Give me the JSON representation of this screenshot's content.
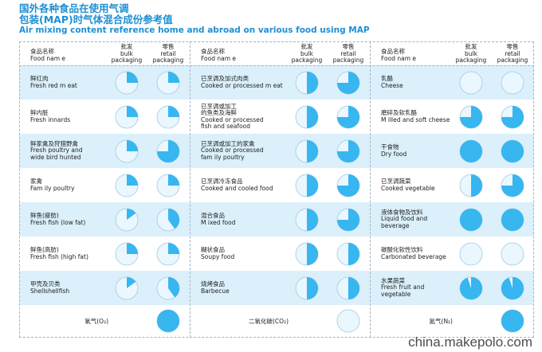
{
  "title": {
    "line1": "国外各种食品在使用气调",
    "line2": "包装(MAP)时气体混合成份参考值",
    "line3": "Air mixing content reference home and abroad on various food using MAP"
  },
  "header": {
    "food_name_cn": "食品名称",
    "food_name_en": "Food nam e",
    "bulk_cn": "批发",
    "bulk_en": "bulk\npackaging",
    "retail_cn": "零售",
    "retail_en": "retail\npackaging"
  },
  "colors": {
    "accent": "#1f8fd2",
    "pie_fill": "#37b6f0",
    "pie_bg": "#eaf7fe",
    "band": "#dbf0fb"
  },
  "columns": [
    {
      "rows": [
        {
          "name_cn": "鲜红肉",
          "name_en": "Fresh red m eat",
          "bulk": 0.25,
          "retail": 0.25
        },
        {
          "name_cn": "鲜内脏",
          "name_en": "Fresh innards",
          "bulk": 0.25,
          "retail": 0.25
        },
        {
          "name_cn": "鲜家禽及狩猎野禽",
          "name_en": "Fresh poultry and\nwide bird hunted",
          "bulk": 0.25,
          "retail": 0.75
        },
        {
          "name_cn": "家禽",
          "name_en": "Fam ily poultry",
          "bulk": 0.25,
          "retail": 0.25
        },
        {
          "name_cn": "鲜鱼(瘦肪)",
          "name_en": "Fresh fish (low fat)",
          "bulk": 0.15,
          "retail": 0.4
        },
        {
          "name_cn": "鲜鱼(高肪)",
          "name_en": "Fresh fish (high fat)",
          "bulk": 0.25,
          "retail": 0.25
        },
        {
          "name_cn": "甲壳及贝类",
          "name_en": "Shellshellfish",
          "bulk": 0.15,
          "retail": 0.4
        }
      ],
      "gas_label": "氧气(O₂)",
      "gas_fill": 1
    },
    {
      "rows": [
        {
          "name_cn": "已烹调及加式肉类",
          "name_en": "Cooked or processed m eat",
          "bulk": 0.5,
          "retail": 0.75
        },
        {
          "name_cn": "已烹调或加工\n的鱼类及海鲜",
          "name_en": "Cooked or processed\nfish and seafood",
          "bulk": 0.5,
          "retail": 0.75
        },
        {
          "name_cn": "已烹调或加工的家禽",
          "name_en": "Cooked or processed\nfam ily poultry",
          "bulk": 0.5,
          "retail": 0.75
        },
        {
          "name_cn": "已烹调冷冻食品",
          "name_en": "Cooked and cooled food",
          "bulk": 0.5,
          "retail": 0.75
        },
        {
          "name_cn": "混合食品",
          "name_en": "M ixed food",
          "bulk": 0.5,
          "retail": 0.75
        },
        {
          "name_cn": "糊状食品",
          "name_en": "Soupy food",
          "bulk": 0.5,
          "retail": 0.5
        },
        {
          "name_cn": "烧烤食品",
          "name_en": "Barbecue",
          "bulk": 0.5,
          "retail": 0.5
        }
      ],
      "gas_label": "二氧化碳(CO₂)",
      "gas_fill": 0
    },
    {
      "rows": [
        {
          "name_cn": "乳酪",
          "name_en": "Cheese",
          "bulk": 0,
          "retail": 0
        },
        {
          "name_cn": "磨碎及软乳酪",
          "name_en": "M illed and soft cheese",
          "bulk": 0.75,
          "retail": 0.75
        },
        {
          "name_cn": "干食物",
          "name_en": "Dry food",
          "bulk": 1,
          "retail": 1
        },
        {
          "name_cn": "已烹调蔬菜",
          "name_en": "Cooked vegetable",
          "bulk": 0.5,
          "retail": 0.75
        },
        {
          "name_cn": "液体食物及饮料",
          "name_en": "Liquid food and\nbeverage",
          "bulk": 1,
          "retail": 1
        },
        {
          "name_cn": "碳酸化软性饮料",
          "name_en": "Carbonated beverage",
          "bulk": 0,
          "retail": 0
        },
        {
          "name_cn": "水果蔬菜",
          "name_en": "Fresh fruit and\nvegetable",
          "bulk": 0.95,
          "retail": 0.95
        }
      ],
      "gas_label": "氮气(N₂)",
      "gas_fill": 1
    }
  ],
  "watermark": "china.makepolo.com"
}
